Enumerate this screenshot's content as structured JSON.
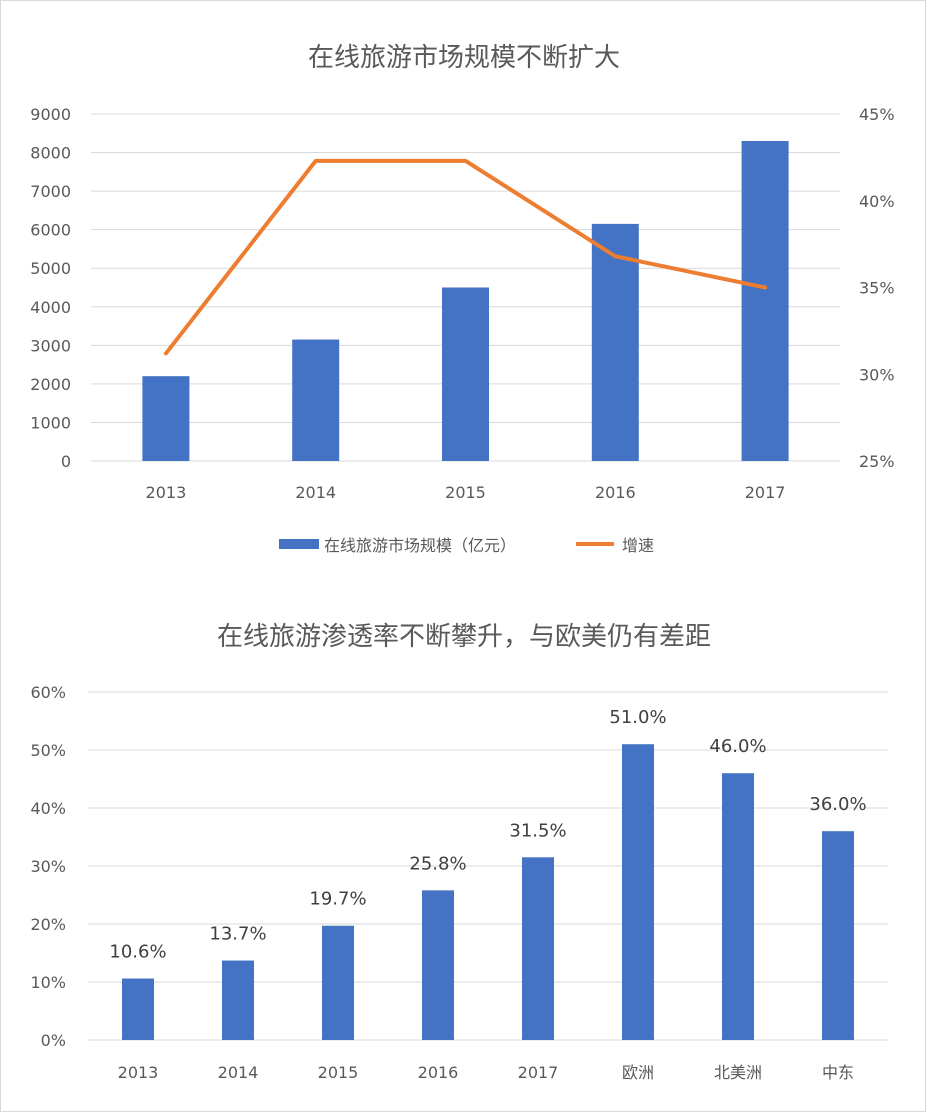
{
  "chart_data": [
    {
      "type": "bar",
      "title": "在线旅游市场规模不断扩大",
      "categories": [
        "2013",
        "2014",
        "2015",
        "2016",
        "2017"
      ],
      "series": [
        {
          "name": "在线旅游市场规模（亿元）",
          "type": "bar",
          "axis": "left",
          "values": [
            2200,
            3150,
            4500,
            6150,
            8300
          ]
        },
        {
          "name": "增速",
          "type": "line",
          "axis": "right",
          "values": [
            31.2,
            42.3,
            42.3,
            36.8,
            35.0
          ]
        }
      ],
      "ylim": [
        0,
        9000
      ],
      "y_ticks": [
        "0",
        "1000",
        "2000",
        "3000",
        "4000",
        "5000",
        "6000",
        "7000",
        "8000",
        "9000"
      ],
      "y2lim": [
        25,
        45
      ],
      "y2_ticks": [
        "25%",
        "30%",
        "35%",
        "40%",
        "45%"
      ],
      "grid": true,
      "legend": "bottom",
      "colors": {
        "bar": "#4472C4",
        "line": "#ED7D31"
      }
    },
    {
      "type": "bar",
      "title": "在线旅游渗透率不断攀升，与欧美仍有差距",
      "categories": [
        "2013",
        "2014",
        "2015",
        "2016",
        "2017",
        "欧洲",
        "北美洲",
        "中东"
      ],
      "values": [
        10.6,
        13.7,
        19.7,
        25.8,
        31.5,
        51.0,
        46.0,
        36.0
      ],
      "data_labels": [
        "10.6%",
        "13.7%",
        "19.7%",
        "25.8%",
        "31.5%",
        "51.0%",
        "46.0%",
        "36.0%"
      ],
      "ylim": [
        0,
        60
      ],
      "y_ticks": [
        "0%",
        "10%",
        "20%",
        "30%",
        "40%",
        "50%",
        "60%"
      ],
      "grid": true,
      "colors": {
        "bar": "#4472C4"
      }
    }
  ]
}
